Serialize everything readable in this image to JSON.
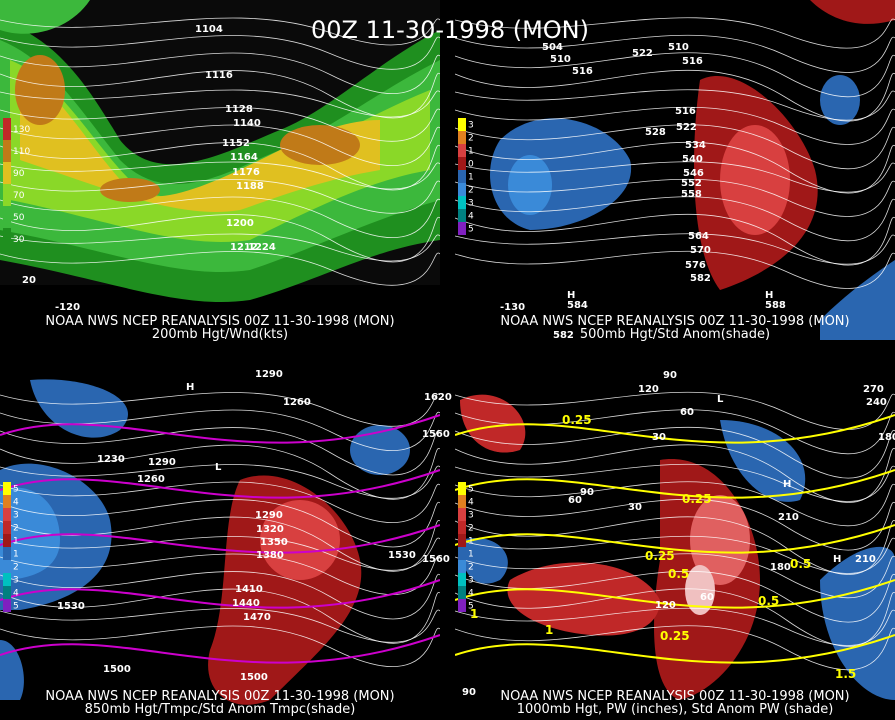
{
  "title": "00Z 11-30-1998 (MON)",
  "panels": [
    {
      "caption": "NOAA NWS NCEP REANALYSIS 00Z 11-30-1998 (MON)",
      "subcaption": "200mb Hgt/Wnd(kts)",
      "legend": [
        "130",
        "110",
        "90",
        "70",
        "50",
        "30"
      ],
      "contour_labels": [
        "1104",
        "1116",
        "1128",
        "1140",
        "1152",
        "1164",
        "1176",
        "1188",
        "1200",
        "1212",
        "1224",
        "20",
        "-120"
      ]
    },
    {
      "caption": "NOAA NWS NCEP REANALYSIS 00Z 11-30-1998 (MON)",
      "subcaption": "500mb Hgt/Std Anom(shade)",
      "legend": [
        "3",
        "2",
        "1",
        "0",
        "1",
        "2",
        "3",
        "4",
        "5"
      ],
      "contour_labels": [
        "504",
        "510",
        "516",
        "522",
        "510",
        "516",
        "528",
        "516",
        "522",
        "534",
        "540",
        "546",
        "552",
        "558",
        "564",
        "570",
        "576",
        "582",
        "H",
        "584",
        "H",
        "588",
        "582",
        "-130"
      ]
    },
    {
      "caption": "NOAA NWS NCEP REANALYSIS 00Z 11-30-1998 (MON)",
      "subcaption": "850mb Hgt/Tmpc/Std Anom Tmpc(shade)",
      "legend": [
        "5",
        "4",
        "3",
        "2",
        "1",
        "1",
        "2",
        "3",
        "4",
        "5"
      ],
      "contour_labels": [
        "1290",
        "1260",
        "1230",
        "1290",
        "1260",
        "1290",
        "1320",
        "1350",
        "1380",
        "1410",
        "1440",
        "1470",
        "1500",
        "1530",
        "1560",
        "1620",
        "1560",
        "1530",
        "1500",
        "L",
        "H"
      ]
    },
    {
      "caption": "NOAA NWS NCEP REANALYSIS 00Z 11-30-1998 (MON)",
      "subcaption": "1000mb Hgt, PW (inches), Std Anom PW (shade)",
      "legend": [
        "5",
        "4",
        "3",
        "2",
        "1",
        "1",
        "2",
        "3",
        "4",
        "5"
      ],
      "contour_labels": [
        "90",
        "120",
        "60",
        "30",
        "90",
        "60",
        "30",
        "210",
        "180",
        "240",
        "270",
        "180",
        "210",
        "H",
        "H",
        "L",
        "120",
        "60",
        "90"
      ],
      "pw_labels": [
        "0.25",
        "0.25",
        "0.25",
        "0.5",
        "0.5",
        "0.5",
        "0.25",
        "1",
        "1",
        "1.5"
      ]
    }
  ]
}
